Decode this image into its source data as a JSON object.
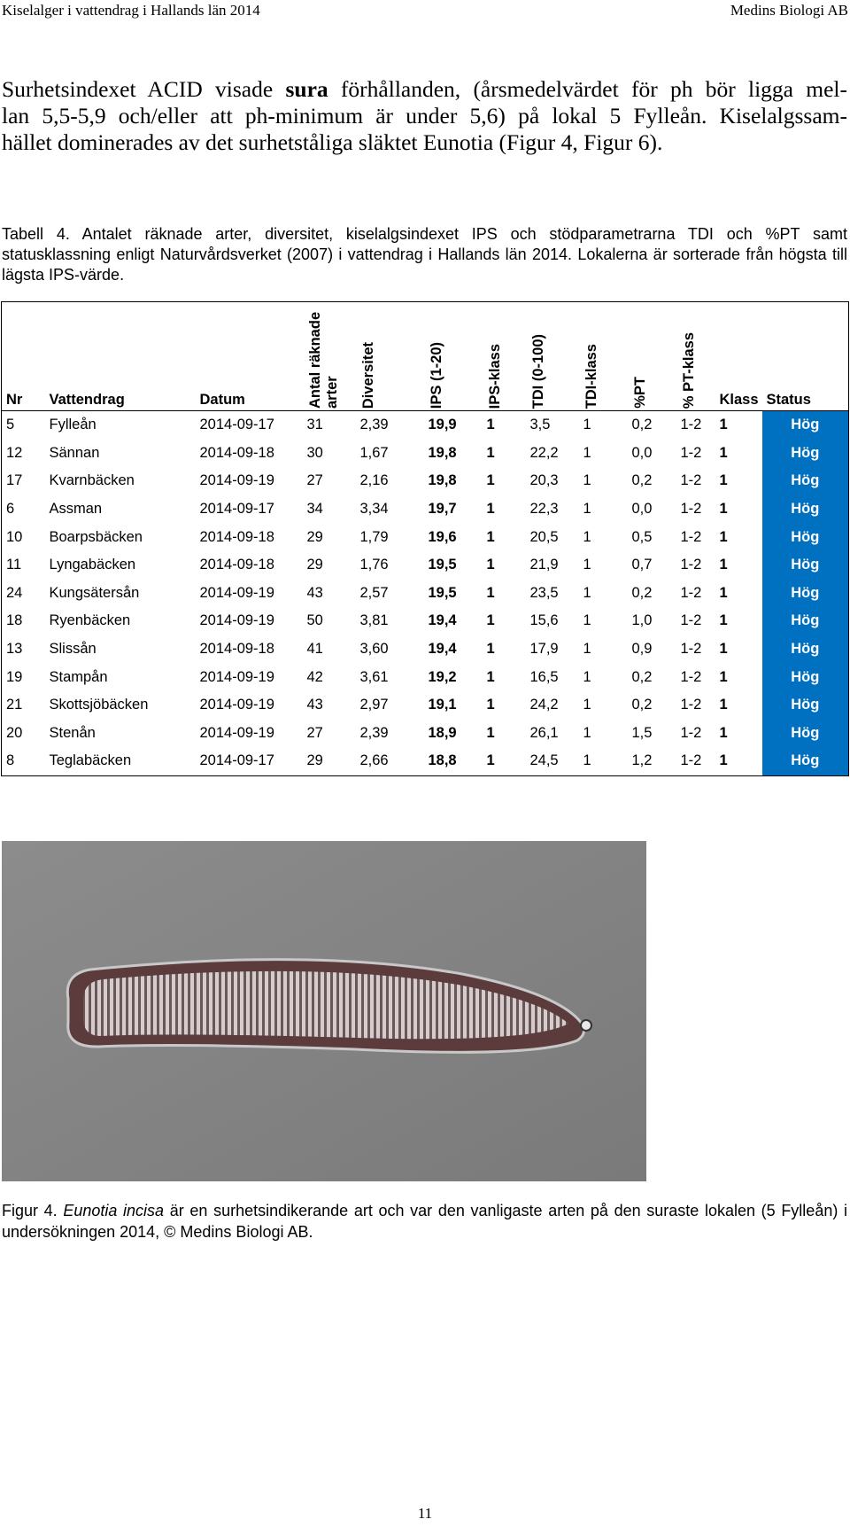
{
  "header": {
    "left": "Kiselalger i vattendrag i Hallands län 2014",
    "right": "Medins Biologi AB"
  },
  "paragraph": {
    "lines": [
      [
        "Surhetsindexet ACID visade ",
        "sura",
        " förhållanden, (årsmedelvärdet för ph bör ligga mel-"
      ],
      [
        "lan 5,5-5,9 och/eller att ph-minimum är under 5,6) på lokal 5 Fylleån. Kiselalgssam-"
      ],
      [
        "hället dominerades av det surhetståliga släktet Eunotia (Figur 4, Figur 6)."
      ]
    ]
  },
  "table_caption": "Tabell 4. Antalet räknade arter, diversitet, kiselalgsindexet IPS och stödparametrarna TDI och %PT samt statusklassning enligt Naturvårdsverket (2007) i vattendrag i Hallands län 2014. Lokalerna är sorterade från högsta till lägsta IPS-värde.",
  "table": {
    "columns": [
      "Nr",
      "Vattendrag",
      "Datum",
      "Antal räknade arter",
      "Diversitet",
      "IPS (1-20)",
      "IPS-klass",
      "TDI (0-100)",
      "TDI-klass",
      "%PT",
      "% PT-klass",
      "Klass",
      "Status"
    ],
    "rows": [
      [
        "5",
        "Fylleån",
        "2014-09-17",
        "31",
        "2,39",
        "19,9",
        "1",
        "3,5",
        "1",
        "0,2",
        "1-2",
        "1",
        "Hög"
      ],
      [
        "12",
        "Sännan",
        "2014-09-18",
        "30",
        "1,67",
        "19,8",
        "1",
        "22,2",
        "1",
        "0,0",
        "1-2",
        "1",
        "Hög"
      ],
      [
        "17",
        "Kvarnbäcken",
        "2014-09-19",
        "27",
        "2,16",
        "19,8",
        "1",
        "20,3",
        "1",
        "0,2",
        "1-2",
        "1",
        "Hög"
      ],
      [
        "6",
        "Assman",
        "2014-09-17",
        "34",
        "3,34",
        "19,7",
        "1",
        "22,3",
        "1",
        "0,0",
        "1-2",
        "1",
        "Hög"
      ],
      [
        "10",
        "Boarpsbäcken",
        "2014-09-18",
        "29",
        "1,79",
        "19,6",
        "1",
        "20,5",
        "1",
        "0,5",
        "1-2",
        "1",
        "Hög"
      ],
      [
        "11",
        "Lyngabäcken",
        "2014-09-18",
        "29",
        "1,76",
        "19,5",
        "1",
        "21,9",
        "1",
        "0,7",
        "1-2",
        "1",
        "Hög"
      ],
      [
        "24",
        "Kungsätersån",
        "2014-09-19",
        "43",
        "2,57",
        "19,5",
        "1",
        "23,5",
        "1",
        "0,2",
        "1-2",
        "1",
        "Hög"
      ],
      [
        "18",
        "Ryenbäcken",
        "2014-09-19",
        "50",
        "3,81",
        "19,4",
        "1",
        "15,6",
        "1",
        "1,0",
        "1-2",
        "1",
        "Hög"
      ],
      [
        "13",
        "Slissån",
        "2014-09-18",
        "41",
        "3,60",
        "19,4",
        "1",
        "17,9",
        "1",
        "0,9",
        "1-2",
        "1",
        "Hög"
      ],
      [
        "19",
        "Stampån",
        "2014-09-19",
        "42",
        "3,61",
        "19,2",
        "1",
        "16,5",
        "1",
        "0,2",
        "1-2",
        "1",
        "Hög"
      ],
      [
        "21",
        "Skottsjöbäcken",
        "2014-09-19",
        "43",
        "2,97",
        "19,1",
        "1",
        "24,2",
        "1",
        "0,2",
        "1-2",
        "1",
        "Hög"
      ],
      [
        "20",
        "Stenån",
        "2014-09-19",
        "27",
        "2,39",
        "18,9",
        "1",
        "26,1",
        "1",
        "1,5",
        "1-2",
        "1",
        "Hög"
      ],
      [
        "8",
        "Teglabäcken",
        "2014-09-17",
        "29",
        "2,66",
        "18,8",
        "1",
        "24,5",
        "1",
        "1,2",
        "1-2",
        "1",
        "Hög"
      ]
    ]
  },
  "figure_caption": [
    "Figur 4. ",
    "Eunotia incisa",
    " är en surhetsindikerande art och var den vanligaste arten på den suraste lokalen (5 Fylleån) i undersökningen 2014, © Medins Biologi AB."
  ],
  "page_number": "11"
}
